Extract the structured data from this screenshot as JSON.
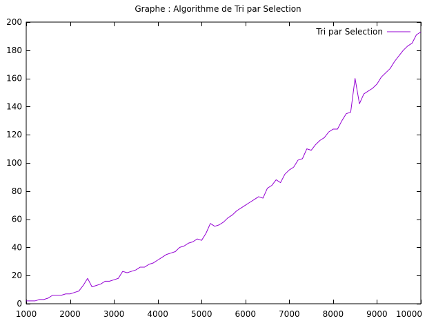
{
  "chart_data": {
    "type": "line",
    "title": "Graphe : Algorithme de Tri par Selection",
    "xlabel": "",
    "ylabel": "",
    "xlim": [
      1000,
      10000
    ],
    "ylim": [
      0,
      200
    ],
    "x_ticks": [
      1000,
      2000,
      3000,
      4000,
      5000,
      6000,
      7000,
      8000,
      9000,
      10000
    ],
    "y_ticks": [
      0,
      20,
      40,
      60,
      80,
      100,
      120,
      140,
      160,
      180,
      200
    ],
    "grid": false,
    "legend_position": "top-right",
    "series": [
      {
        "name": "Tri par Selection",
        "color": "#9400d3",
        "x": [
          1000,
          1100,
          1200,
          1300,
          1400,
          1500,
          1600,
          1700,
          1800,
          1900,
          2000,
          2100,
          2200,
          2300,
          2400,
          2500,
          2600,
          2700,
          2800,
          2900,
          3000,
          3100,
          3200,
          3300,
          3400,
          3500,
          3600,
          3700,
          3800,
          3900,
          4000,
          4100,
          4200,
          4300,
          4400,
          4500,
          4600,
          4700,
          4800,
          4900,
          5000,
          5100,
          5200,
          5300,
          5400,
          5500,
          5600,
          5700,
          5800,
          5900,
          6000,
          6100,
          6200,
          6300,
          6400,
          6500,
          6600,
          6700,
          6800,
          6900,
          7000,
          7100,
          7200,
          7300,
          7400,
          7500,
          7600,
          7700,
          7800,
          7900,
          8000,
          8100,
          8200,
          8300,
          8400,
          8500,
          8600,
          8700,
          8800,
          8900,
          9000,
          9100,
          9200,
          9300,
          9400,
          9500,
          9600,
          9700,
          9800,
          9900,
          10000
        ],
        "y": [
          2,
          2,
          2,
          3,
          3,
          4,
          6,
          6,
          6,
          7,
          7,
          8,
          9,
          13,
          18,
          12,
          13,
          14,
          16,
          16,
          17,
          18,
          23,
          22,
          23,
          24,
          26,
          26,
          28,
          29,
          31,
          33,
          35,
          36,
          37,
          40,
          41,
          43,
          44,
          46,
          45,
          50,
          57,
          55,
          56,
          58,
          61,
          63,
          66,
          68,
          70,
          72,
          74,
          76,
          75,
          82,
          84,
          88,
          86,
          92,
          95,
          97,
          102,
          103,
          110,
          109,
          113,
          116,
          118,
          122,
          124,
          124,
          130,
          135,
          136,
          160,
          142,
          149,
          151,
          153,
          156,
          161,
          164,
          167,
          172,
          176,
          180,
          183,
          185,
          191,
          193
        ]
      }
    ]
  }
}
